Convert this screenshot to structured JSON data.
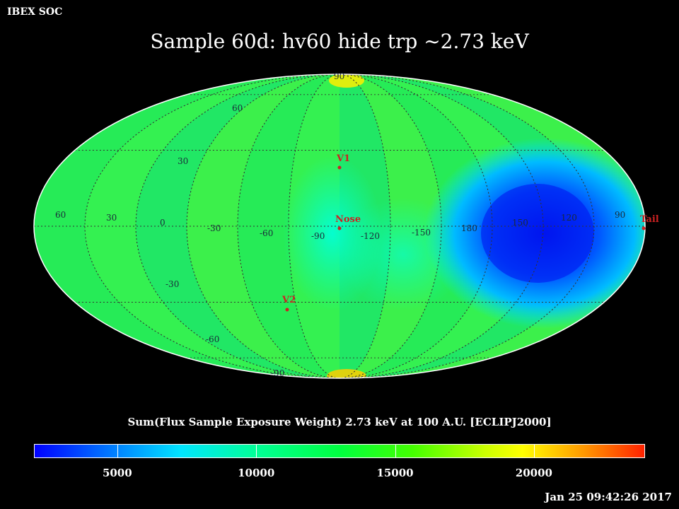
{
  "header": {
    "org": "IBEX SOC",
    "title": "Sample 60d: hv60 hide trp ~2.73 keV"
  },
  "map": {
    "projection": "mollweide",
    "latitude_labels": [
      "90",
      "60",
      "30",
      "-30",
      "-60",
      "-90"
    ],
    "longitude_labels": [
      "60",
      "30",
      "0",
      "-30",
      "-60",
      "-90",
      "-120",
      "-150",
      "180",
      "150",
      "120",
      "90"
    ],
    "markers": [
      {
        "name": "V1",
        "color": "#cc2222"
      },
      {
        "name": "Nose",
        "color": "#cc2222"
      },
      {
        "name": "V2",
        "color": "#cc2222"
      },
      {
        "name": "Tail",
        "color": "#cc2222"
      }
    ],
    "grid_color": "#333333"
  },
  "colorbar": {
    "title": "Sum(Flux Sample Exposure Weight)  2.73 keV at 100 A.U. [ECLIPJ2000]",
    "ticks": [
      "5000",
      "10000",
      "15000",
      "20000"
    ],
    "range": [
      2000,
      24000
    ]
  },
  "footer": {
    "timestamp": "Jan 25 09:42:26 2017"
  }
}
